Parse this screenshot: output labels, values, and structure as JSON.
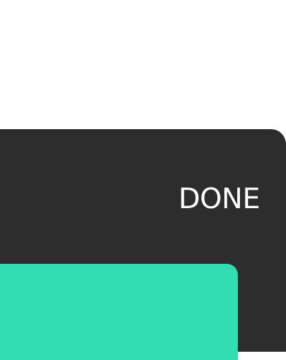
{
  "panel": {
    "done_label": "DONE"
  },
  "colors": {
    "background": "#ffffff",
    "panel": "#2d2d2d",
    "text": "#ffffff",
    "accent": "#33ddb2"
  }
}
